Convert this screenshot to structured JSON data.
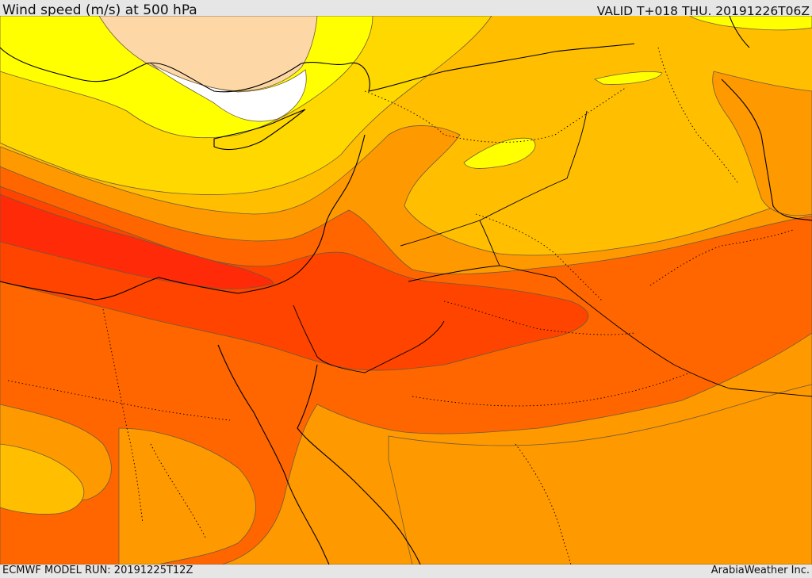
{
  "header": {
    "title": "Wind speed (m/s) at 500 hPa",
    "valid": "VALID T+018 THU. 20191226T06Z"
  },
  "footer": {
    "model_run": "ECMWF MODEL RUN: 20191225T12Z",
    "credit": "ArabiaWeather Inc."
  },
  "map": {
    "variable": "wind-speed",
    "pressure_level": "500 hPa",
    "colors": {
      "white": "#ffffff",
      "peach": "#fdd8a6",
      "yellow": "#ffff00",
      "gold": "#ffd800",
      "amber": "#ffbf00",
      "orange": "#ff9900",
      "dark_orange": "#ff6600",
      "red_orange": "#ff4400",
      "red": "#ff2a08"
    }
  }
}
